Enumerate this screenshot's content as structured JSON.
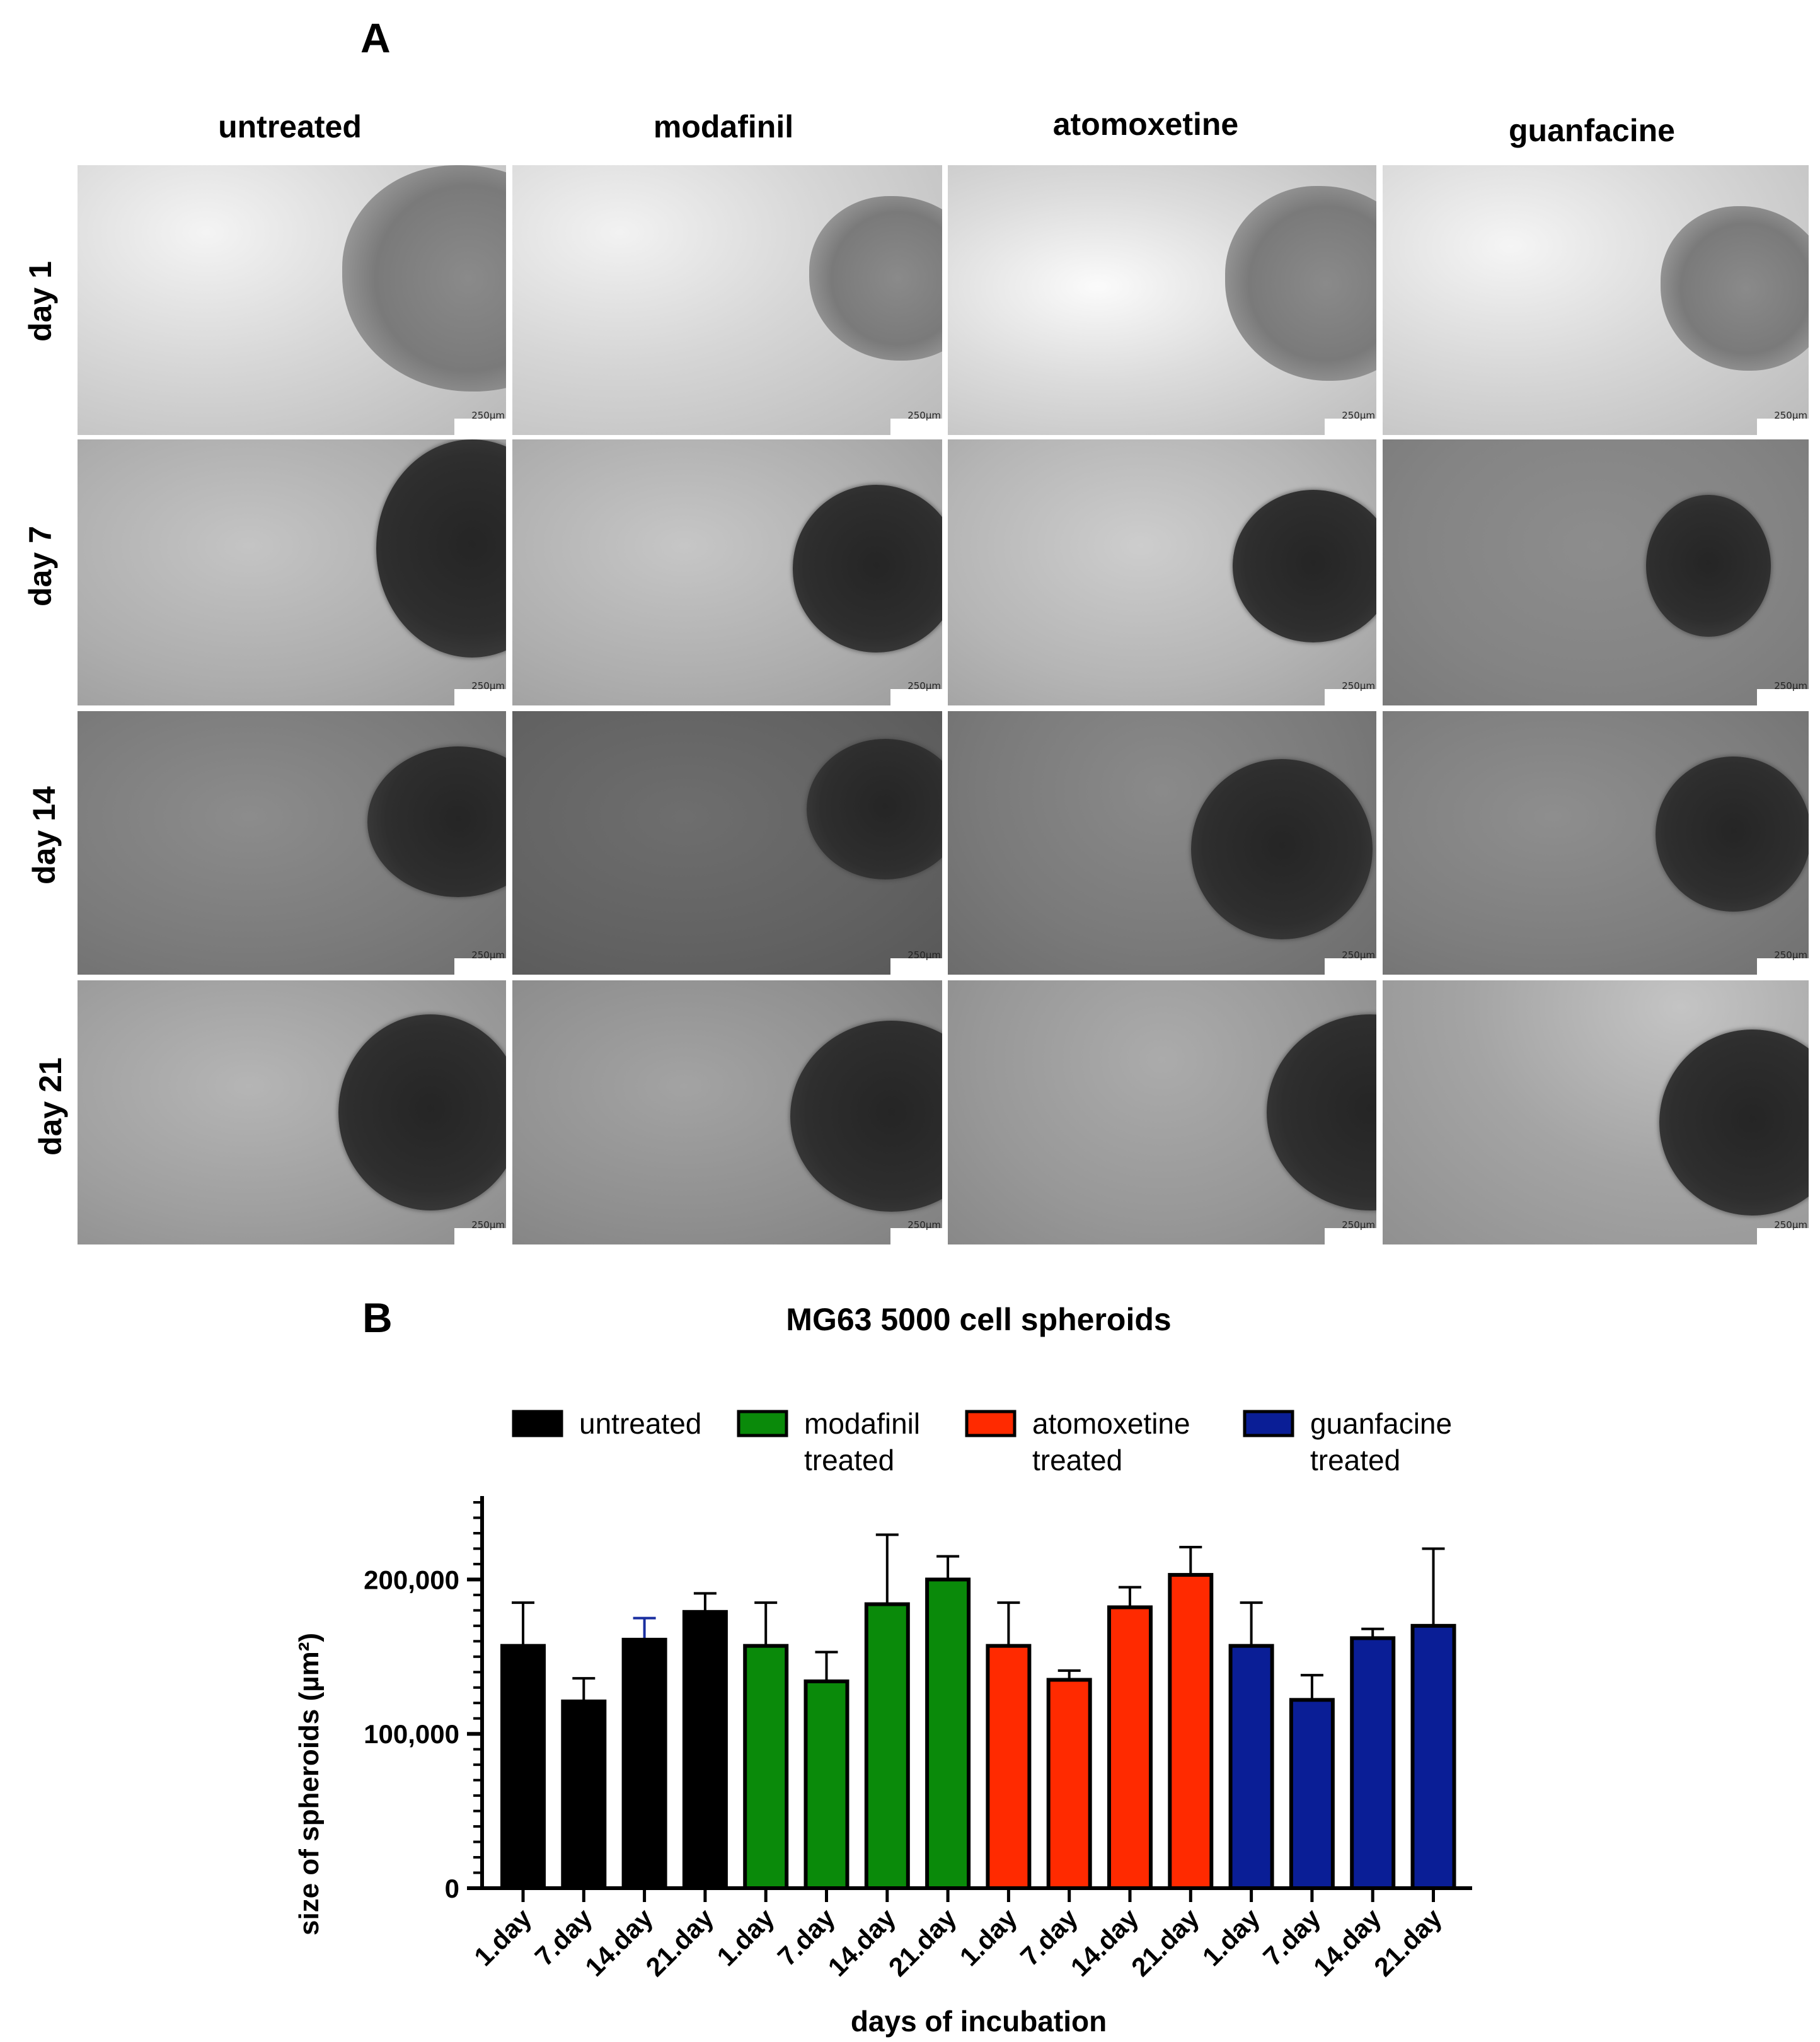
{
  "panel_a": {
    "letter": "A",
    "columns": [
      "untreated",
      "modafinil",
      "atomoxetine",
      "guanfacine"
    ],
    "rows": [
      "day 1",
      "day 7",
      "day 14",
      "day 21"
    ],
    "scale_bar_label": "250µm"
  },
  "panel_b": {
    "letter": "B"
  },
  "chart_data": {
    "type": "bar",
    "title": "MG63 5000 cell spheroids",
    "xlabel": "days of incubation",
    "ylabel": "size of spheroids (µm²)",
    "ylim": [
      0,
      250000
    ],
    "yticks": [
      0,
      100000,
      200000
    ],
    "ytick_labels": [
      "0",
      "100,000",
      "200,000"
    ],
    "legend": [
      {
        "label": "untreated",
        "color": "#000000"
      },
      {
        "label": "modafinil treated",
        "color": "#0a8a0a"
      },
      {
        "label": "atomoxetine treated",
        "color": "#ff2a00"
      },
      {
        "label": "guanfacine treated",
        "color": "#0a1e96"
      }
    ],
    "categories": [
      "1.day",
      "7.day",
      "14.day",
      "21.day",
      "1.day",
      "7.day",
      "14.day",
      "21.day",
      "1.day",
      "7.day",
      "14.day",
      "21.day",
      "1.day",
      "7.day",
      "14.day",
      "21.day"
    ],
    "groups": [
      "untreated",
      "untreated",
      "untreated",
      "untreated",
      "modafinil",
      "modafinil",
      "modafinil",
      "modafinil",
      "atomoxetine",
      "atomoxetine",
      "atomoxetine",
      "atomoxetine",
      "guanfacine",
      "guanfacine",
      "guanfacine",
      "guanfacine"
    ],
    "values": [
      157000,
      121000,
      161000,
      179000,
      157000,
      134000,
      184000,
      200000,
      157000,
      135000,
      182000,
      203000,
      157000,
      122000,
      162000,
      170000
    ],
    "errors": [
      28000,
      15000,
      14000,
      12000,
      28000,
      19000,
      45000,
      15000,
      28000,
      6000,
      13000,
      18000,
      28000,
      16000,
      6000,
      50000
    ],
    "bar_colors": [
      "#000000",
      "#000000",
      "#000000",
      "#000000",
      "#0a8a0a",
      "#0a8a0a",
      "#0a8a0a",
      "#0a8a0a",
      "#ff2a00",
      "#ff2a00",
      "#ff2a00",
      "#ff2a00",
      "#0a1e96",
      "#0a1e96",
      "#0a1e96",
      "#0a1e96"
    ]
  }
}
